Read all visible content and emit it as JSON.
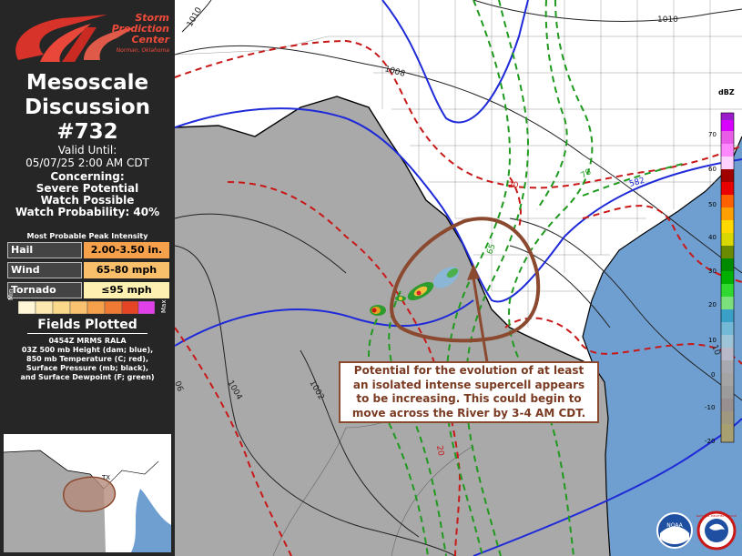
{
  "header": {
    "logo_name": "Storm",
    "logo_name2": "Prediction",
    "logo_name3": "Center",
    "logo_location": "Norman, Oklahoma",
    "title_line1": "Mesoscale",
    "title_line2": "Discussion",
    "title_line3": "#732"
  },
  "valid": {
    "line1": "Valid Until:",
    "line2": "05/07/25 2:00 AM CDT"
  },
  "concerning": {
    "line1": "Concerning:",
    "line2": "Severe Potential",
    "line3": "Watch Possible",
    "line4": "Watch Probability: 40%"
  },
  "intensity": {
    "heading": "Most Probable Peak Intensity",
    "rows": [
      {
        "label": "Hail",
        "value": "2.00-3.50 in.",
        "color": "#f5a04a"
      },
      {
        "label": "Wind",
        "value": "65-80 mph",
        "color": "#f9bf6b"
      },
      {
        "label": "Tornado",
        "value": "≤95 mph",
        "color": "#fdf0b0"
      }
    ],
    "scale_min": "Min",
    "scale_max": "Max"
  },
  "fields": {
    "heading": "Fields Plotted",
    "lines": [
      "0454Z MRMS RALA",
      "03Z 500 mb Height (dam; blue),",
      "850 mb Temperature (C; red),",
      "Surface Pressure (mb; black),",
      "and Surface Dewpoint (F; green)"
    ]
  },
  "inset": {
    "state_label": "TX"
  },
  "annotation": {
    "lines": [
      "Potential for the evolution of at least",
      "an isolated intense supercell appears",
      "to be increasing.  This could begin to",
      "move across the River by 3-4 AM CDT."
    ]
  },
  "contour_labels": {
    "p1010_a": "1010",
    "p1010_b": "1010",
    "p1008": "1008",
    "p1004": "1004",
    "p1002": "1002",
    "p1006": "06",
    "h582": "582",
    "td65": "65",
    "td70": "70",
    "t20": "20",
    "t20b": "20",
    "p10_edge": "10"
  },
  "colorbar": {
    "unit": "dBZ",
    "ticks": [
      "70",
      "60",
      "50",
      "40",
      "30",
      "20",
      "10",
      "0",
      "-10",
      "-20"
    ]
  },
  "logos": {
    "noaa": "NOAA",
    "nws": "NATIONAL WEATHER SERVICE"
  },
  "colors": {
    "land": "#ffffff",
    "mexico": "#a9a9a9",
    "water": "#6f9fd0",
    "height": "#1f2ad8",
    "temperature": "#c81818",
    "dewpoint": "#1f9a1f",
    "pressure": "#222222",
    "outline": "#8b4a2f"
  }
}
